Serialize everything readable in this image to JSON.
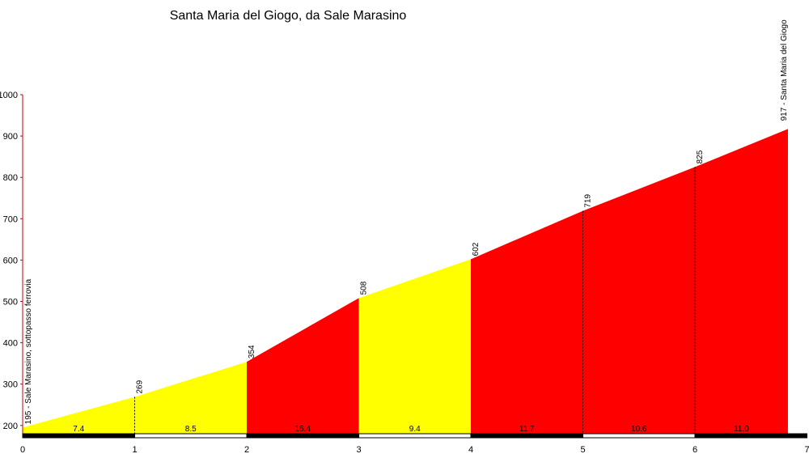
{
  "chart_data": {
    "type": "area",
    "title": "Santa Maria del Giogo, da Sale Marasino",
    "xlim": [
      0,
      7
    ],
    "ylim": [
      180,
      1000
    ],
    "x_ticks": [
      "0",
      "1",
      "2",
      "3",
      "4",
      "5",
      "6",
      "7"
    ],
    "y_ticks": [
      "200",
      "300",
      "400",
      "500",
      "600",
      "700",
      "800",
      "900",
      "1000"
    ],
    "points": [
      {
        "x": 0,
        "y": 195
      },
      {
        "x": 1,
        "y": 269
      },
      {
        "x": 2,
        "y": 354
      },
      {
        "x": 3,
        "y": 508
      },
      {
        "x": 4,
        "y": 602
      },
      {
        "x": 5,
        "y": 719
      },
      {
        "x": 6,
        "y": 825
      },
      {
        "x": 6.83,
        "y": 917
      }
    ],
    "point_labels": [
      "",
      "269",
      "354",
      "508",
      "602",
      "719",
      "825",
      ""
    ],
    "start_label": "195 - Sale Marasino, sottopasso ferrovia",
    "end_label": "917 - Santa Maria del Giogo",
    "segments": [
      {
        "from": 0,
        "to": 1,
        "gradient": "7.4",
        "color": "#ffff00"
      },
      {
        "from": 1,
        "to": 2,
        "gradient": "8.5",
        "color": "#ffff00"
      },
      {
        "from": 2,
        "to": 3,
        "gradient": "15.4",
        "color": "#ff0000"
      },
      {
        "from": 3,
        "to": 4,
        "gradient": "9.4",
        "color": "#ffff00"
      },
      {
        "from": 4,
        "to": 5,
        "gradient": "11.7",
        "color": "#ff0000"
      },
      {
        "from": 5,
        "to": 6,
        "gradient": "10.6",
        "color": "#ff0000"
      },
      {
        "from": 6,
        "to": 6.83,
        "gradient": "11.0",
        "color": "#ff0000"
      }
    ]
  }
}
